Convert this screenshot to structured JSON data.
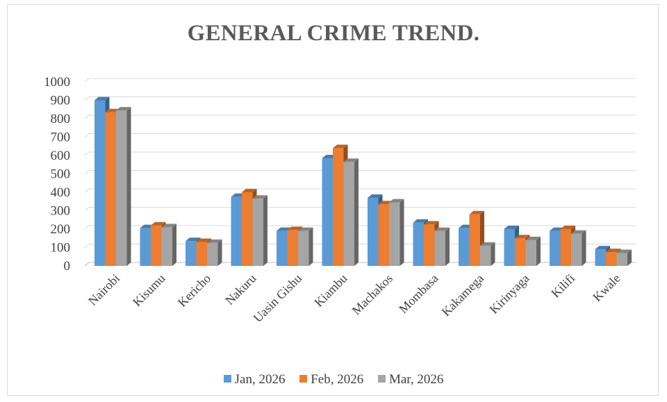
{
  "chart_data": {
    "type": "bar",
    "title": "GENERAL CRIME TREND.",
    "categories": [
      "Nairobi",
      "Kisumu",
      "Kericho",
      "Nakuru",
      "Uasin Gishu",
      "Kiambu",
      "Machakos",
      "Mombasa",
      "Kakamega",
      "Kirinyaga",
      "Kilifi",
      "Kwale"
    ],
    "series": [
      {
        "name": "Jan, 2026",
        "color": "#5B9BD5",
        "values": [
          900,
          205,
          135,
          375,
          190,
          585,
          370,
          235,
          205,
          200,
          190,
          90
        ]
      },
      {
        "name": "Feb, 2026",
        "color": "#ED7D31",
        "values": [
          835,
          220,
          130,
          400,
          195,
          640,
          335,
          225,
          280,
          150,
          200,
          75
        ]
      },
      {
        "name": "Mar, 2026",
        "color": "#A5A5A5",
        "values": [
          845,
          210,
          125,
          365,
          190,
          565,
          345,
          190,
          110,
          140,
          175,
          70
        ]
      }
    ],
    "ylim": [
      0,
      1000
    ],
    "yticks": [
      "0",
      "100",
      "200",
      "300",
      "400",
      "500",
      "600",
      "700",
      "800",
      "900",
      "1000"
    ],
    "grid": true,
    "legend_position": "bottom"
  }
}
